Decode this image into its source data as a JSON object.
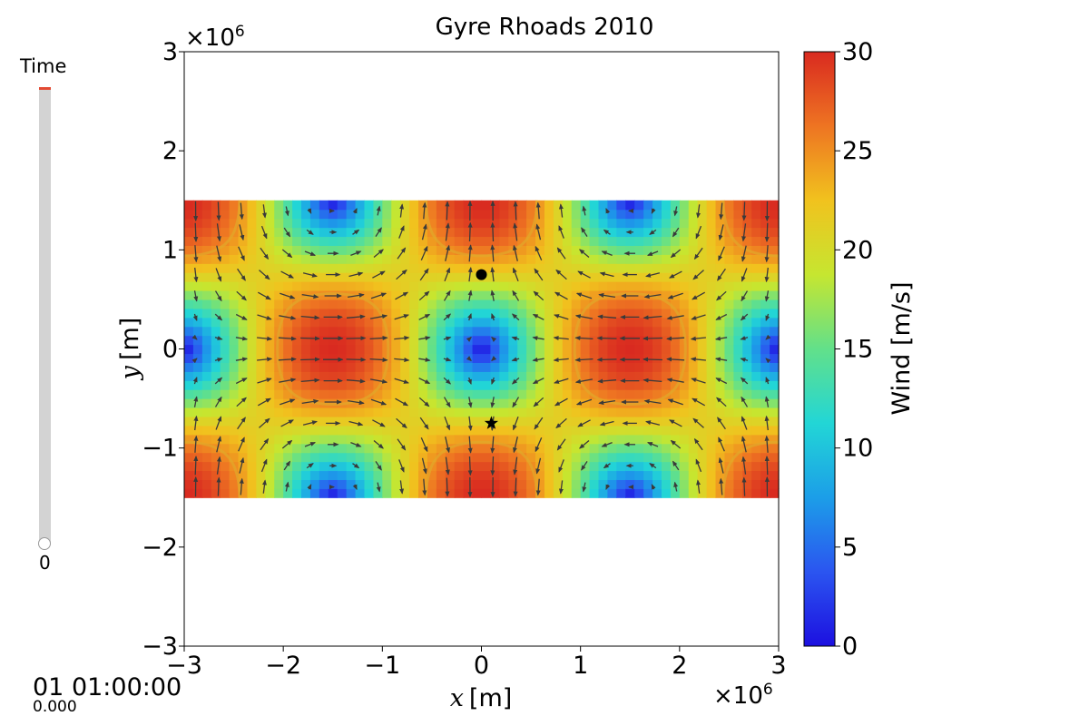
{
  "slider": {
    "label": "Time",
    "value": "0",
    "position": 0.0,
    "fill_color": "#e34a33"
  },
  "time_display": {
    "main": "01 01:00:00",
    "sub": "0.000"
  },
  "chart_data": {
    "type": "heatmap",
    "title": "Gyre Rhoads 2010",
    "xlabel_symbol": "x",
    "xlabel_unit": "[m]",
    "ylabel_symbol": "y",
    "ylabel_unit": "[m]",
    "x_offset_label": "×10",
    "x_offset_exp": "6",
    "y_offset_label": "×10",
    "y_offset_exp": "6",
    "xlim": [
      -3000000,
      3000000
    ],
    "ylim": [
      -3000000,
      3000000
    ],
    "x_ticks": [
      -3000000,
      -2000000,
      -1000000,
      0,
      1000000,
      2000000,
      3000000
    ],
    "x_tick_labels": [
      "−3",
      "−2",
      "−1",
      "0",
      "1",
      "2",
      "3"
    ],
    "y_ticks": [
      -3000000,
      -2000000,
      -1000000,
      0,
      1000000,
      2000000,
      3000000
    ],
    "y_tick_labels": [
      "−3",
      "−2",
      "−1",
      "0",
      "1",
      "2",
      "3"
    ],
    "field_extent": {
      "x": [
        -3000000,
        3000000
      ],
      "y": [
        -1500000,
        1500000
      ]
    },
    "field": {
      "max_speed": 30,
      "gyre_period_x": 3000000,
      "gyre_period_y": 3000000,
      "contour_level": 25
    },
    "colorbar": {
      "label": "Wind [m/s]",
      "vmin": 0,
      "vmax": 30,
      "ticks": [
        0,
        5,
        10,
        15,
        20,
        25,
        30
      ],
      "tick_labels": [
        "0",
        "5",
        "10",
        "15",
        "20",
        "25",
        "30"
      ],
      "colormap": "jet"
    },
    "markers": [
      {
        "name": "start",
        "shape": "circle",
        "x": 0,
        "y": 750000
      },
      {
        "name": "end",
        "shape": "star",
        "x": 100000,
        "y": -750000
      }
    ],
    "grid": false
  }
}
